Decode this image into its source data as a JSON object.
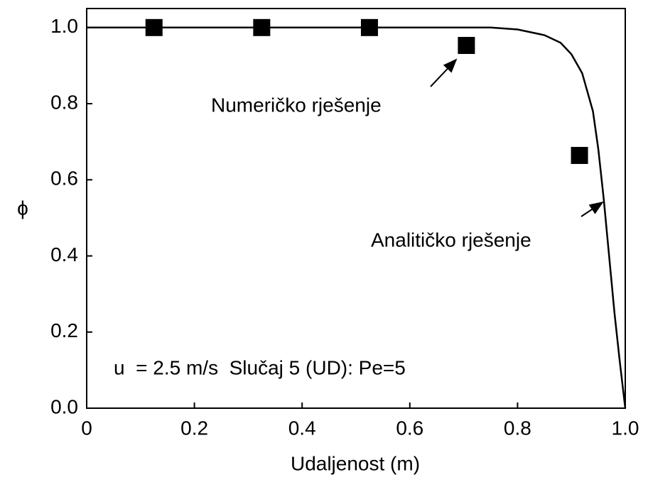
{
  "chart_data": {
    "type": "line",
    "xlabel": "Udaljenost (m)",
    "ylabel": "ϕ",
    "xlim": [
      0,
      1
    ],
    "ylim": [
      0,
      1.05
    ],
    "xticks": [
      0,
      0.2,
      0.4,
      0.6,
      0.8,
      {
        "value": 1,
        "label": "1.0"
      }
    ],
    "yticks": [
      {
        "value": 0,
        "label": "0.0"
      },
      0.2,
      0.4,
      0.6,
      0.8,
      {
        "value": 1,
        "label": "1.0"
      }
    ],
    "series": [
      {
        "marker": "square",
        "color": "#000000",
        "x": [
          0.125,
          0.325,
          0.525,
          0.705,
          0.915
        ],
        "values": [
          1.0,
          1.0,
          1.0,
          0.953,
          0.664
        ]
      },
      {
        "marker": "none",
        "color": "#000000",
        "x": [
          0,
          0.1,
          0.2,
          0.3,
          0.4,
          0.5,
          0.6,
          0.7,
          0.75,
          0.8,
          0.85,
          0.88,
          0.9,
          0.92,
          0.94,
          0.95,
          0.96,
          0.97,
          0.98,
          0.99,
          1.0
        ],
        "values": [
          1,
          1,
          1,
          1,
          1,
          1,
          1,
          1,
          1,
          0.995,
          0.98,
          0.96,
          0.93,
          0.88,
          0.78,
          0.68,
          0.55,
          0.4,
          0.25,
          0.12,
          0
        ]
      }
    ],
    "annotations": [
      "Numeričko rješenje",
      "Analitičko rješenje",
      "u  = 2.5 m/s  Slučaj 5 (UD): Pe=5"
    ]
  }
}
